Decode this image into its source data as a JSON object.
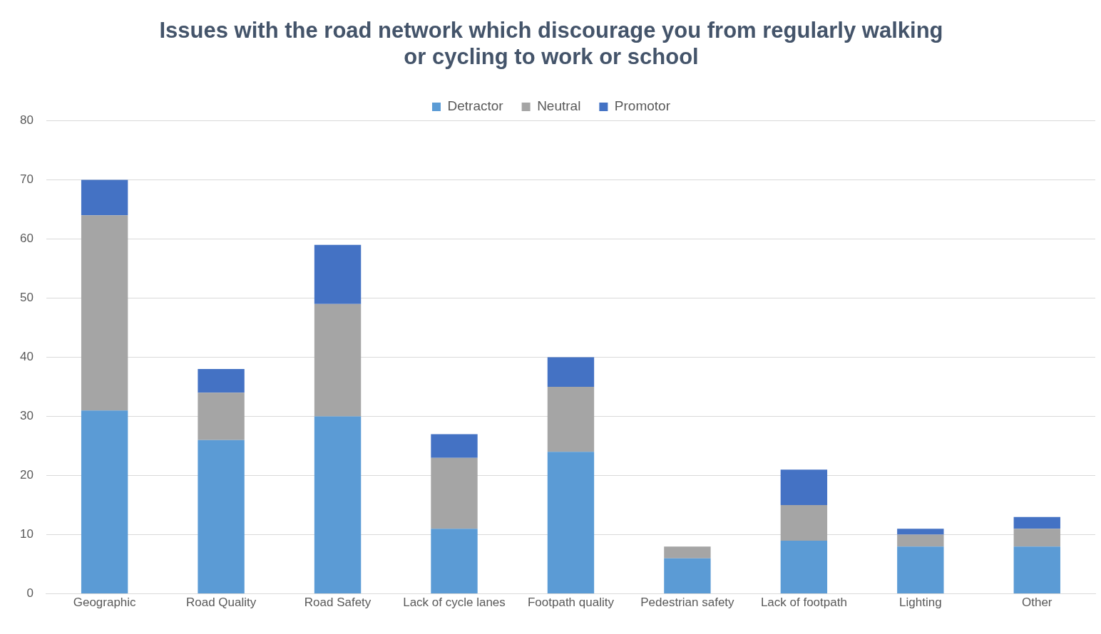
{
  "chart_data": {
    "type": "bar",
    "title": "Issues with the road network which discourage you from regularly walking or cycling to work or school",
    "categories": [
      "Geographic",
      "Road Quality",
      "Road Safety",
      "Lack of cycle lanes",
      "Footpath quality",
      "Pedestrian safety",
      "Lack of footpath",
      "Lighting",
      "Other"
    ],
    "series": [
      {
        "name": "Detractor",
        "color": "#5b9bd5",
        "values": [
          31,
          26,
          30,
          11,
          24,
          6,
          9,
          8,
          8
        ]
      },
      {
        "name": "Neutral",
        "color": "#a5a5a5",
        "values": [
          33,
          8,
          19,
          12,
          11,
          2,
          6,
          2,
          3
        ]
      },
      {
        "name": "Promotor",
        "color": "#4472c4",
        "values": [
          6,
          4,
          10,
          4,
          5,
          0,
          6,
          1,
          2
        ]
      }
    ],
    "stacked": true,
    "ylim": [
      0,
      80
    ],
    "yticks": [
      0,
      10,
      20,
      30,
      40,
      50,
      60,
      70,
      80
    ],
    "grid": "y",
    "legend": "top"
  }
}
